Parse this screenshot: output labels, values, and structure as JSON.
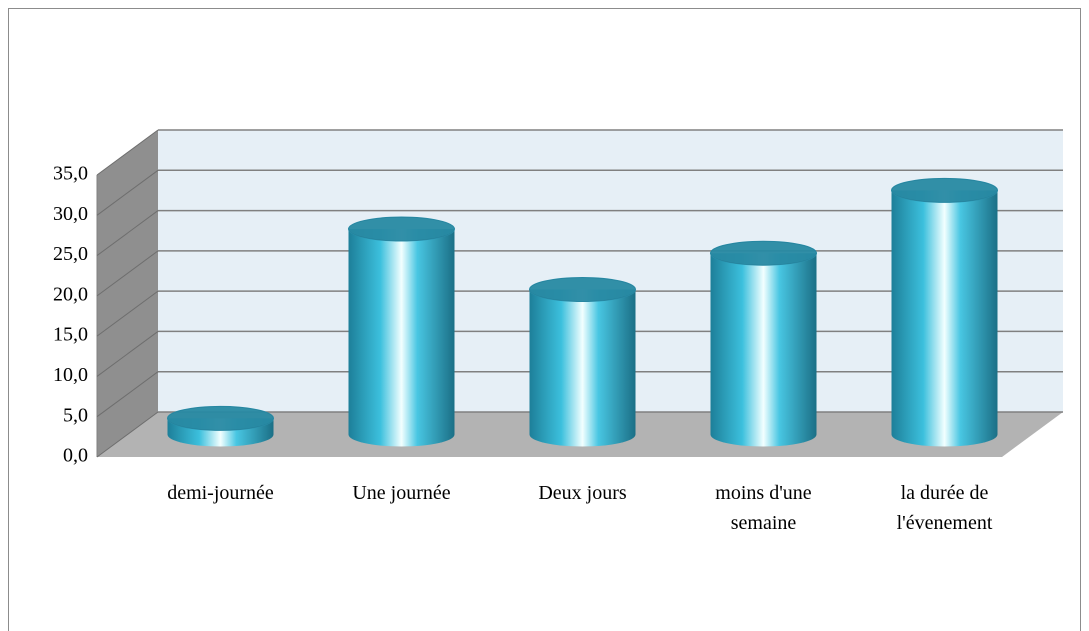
{
  "chart_data": {
    "type": "bar",
    "categories": [
      "demi-journée",
      "Une journée",
      "Deux jours",
      "moins d'une semaine",
      "la durée de l'évenement"
    ],
    "values": [
      2.0,
      25.5,
      18.0,
      22.5,
      30.3
    ],
    "color": "#31a6c4",
    "ylim": [
      0,
      35
    ],
    "yticks": [
      {
        "value": 0,
        "label": "0,0"
      },
      {
        "value": 5,
        "label": "5,0"
      },
      {
        "value": 10,
        "label": "10,0"
      },
      {
        "value": 15,
        "label": "15,0"
      },
      {
        "value": 20,
        "label": "20,0"
      },
      {
        "value": 25,
        "label": "25,0"
      },
      {
        "value": 30,
        "label": "30,0"
      },
      {
        "value": 35,
        "label": "35,0"
      }
    ],
    "grid": true
  }
}
